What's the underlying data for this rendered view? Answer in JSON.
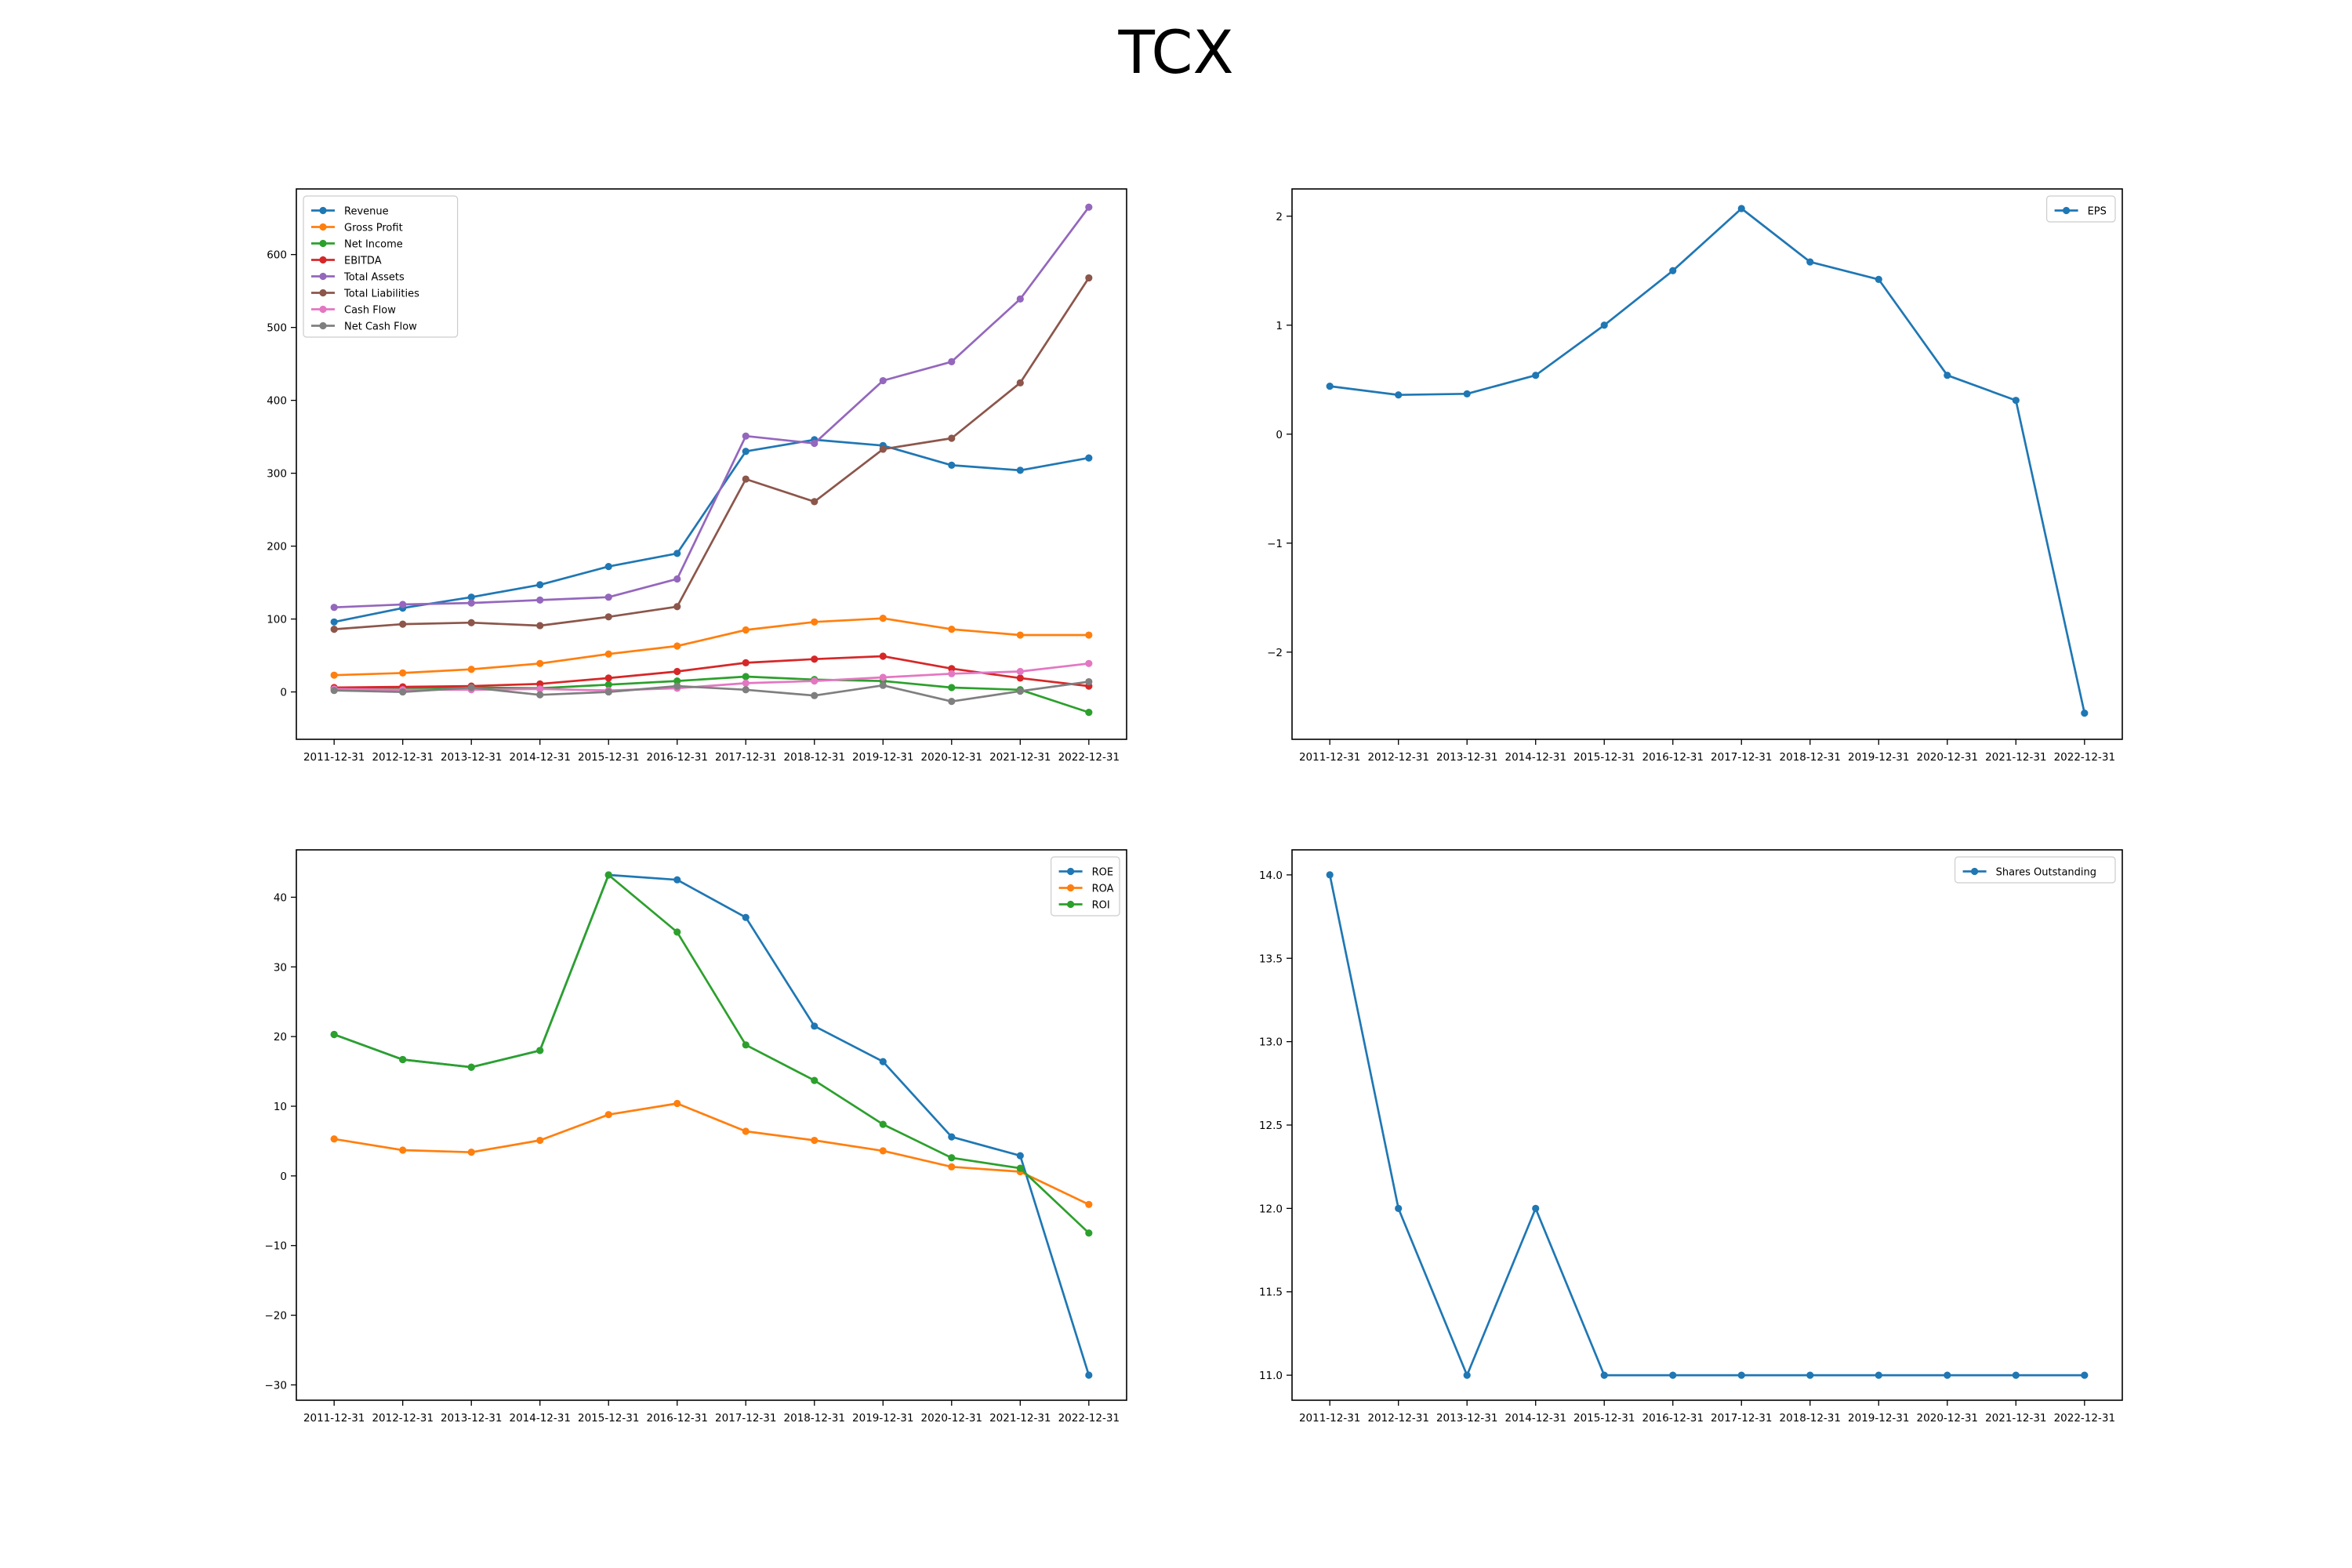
{
  "figure": {
    "title": "TCX"
  },
  "chart_data": [
    {
      "type": "line",
      "title": "",
      "xlabel": "",
      "ylabel": "",
      "x": [
        "2011-12-31",
        "2012-12-31",
        "2013-12-31",
        "2014-12-31",
        "2015-12-31",
        "2016-12-31",
        "2017-12-31",
        "2018-12-31",
        "2019-12-31",
        "2020-12-31",
        "2021-12-31",
        "2022-12-31"
      ],
      "ylim": [
        -65,
        690
      ],
      "yticks": [
        0,
        100,
        200,
        300,
        400,
        500,
        600
      ],
      "legend": "upper-left",
      "grid": false,
      "series": [
        {
          "name": "Revenue",
          "color": "#1f77b4",
          "values": [
            96,
            115,
            130,
            147,
            172,
            190,
            330,
            346,
            338,
            311,
            304,
            321
          ]
        },
        {
          "name": "Gross Profit",
          "color": "#ff7f0e",
          "values": [
            23,
            26,
            31,
            39,
            52,
            63,
            85,
            96,
            101,
            86,
            78,
            78
          ]
        },
        {
          "name": "Net Income",
          "color": "#2ca02c",
          "values": [
            5,
            5,
            6,
            5,
            10,
            15,
            21,
            17,
            15,
            6,
            3,
            -28
          ]
        },
        {
          "name": "EBITDA",
          "color": "#d62728",
          "values": [
            6,
            7,
            8,
            11,
            19,
            28,
            40,
            45,
            49,
            32,
            19,
            8
          ]
        },
        {
          "name": "Total Assets",
          "color": "#9467bd",
          "values": [
            116,
            120,
            122,
            126,
            130,
            155,
            351,
            341,
            427,
            453,
            539,
            665
          ]
        },
        {
          "name": "Total Liabilities",
          "color": "#8c564b",
          "values": [
            86,
            93,
            95,
            91,
            103,
            117,
            292,
            261,
            333,
            348,
            424,
            568
          ]
        },
        {
          "name": "Cash Flow",
          "color": "#e377c2",
          "values": [
            4,
            3,
            3,
            4,
            2,
            5,
            12,
            15,
            20,
            25,
            28,
            39
          ]
        },
        {
          "name": "Net Cash Flow",
          "color": "#7f7f7f",
          "values": [
            2,
            0,
            6,
            -4,
            0,
            8,
            3,
            -5,
            9,
            -13,
            1,
            14
          ]
        }
      ]
    },
    {
      "type": "line",
      "title": "",
      "xlabel": "",
      "ylabel": "",
      "x": [
        "2011-12-31",
        "2012-12-31",
        "2013-12-31",
        "2014-12-31",
        "2015-12-31",
        "2016-12-31",
        "2017-12-31",
        "2018-12-31",
        "2019-12-31",
        "2020-12-31",
        "2021-12-31",
        "2022-12-31"
      ],
      "ylim": [
        -2.8,
        2.25
      ],
      "yticks": [
        -2,
        -1,
        0,
        1,
        2
      ],
      "legend": "upper-right",
      "grid": false,
      "series": [
        {
          "name": "EPS",
          "color": "#1f77b4",
          "values": [
            0.44,
            0.36,
            0.37,
            0.54,
            1.0,
            1.5,
            2.07,
            1.58,
            1.42,
            0.54,
            0.31,
            -2.56
          ]
        }
      ]
    },
    {
      "type": "line",
      "title": "",
      "xlabel": "",
      "ylabel": "",
      "x": [
        "2011-12-31",
        "2012-12-31",
        "2013-12-31",
        "2014-12-31",
        "2015-12-31",
        "2016-12-31",
        "2017-12-31",
        "2018-12-31",
        "2019-12-31",
        "2020-12-31",
        "2021-12-31",
        "2022-12-31"
      ],
      "ylim": [
        -32.2,
        46.8
      ],
      "yticks": [
        -30,
        -20,
        -10,
        0,
        10,
        20,
        30,
        40
      ],
      "legend": "upper-right",
      "grid": false,
      "series": [
        {
          "name": "ROE",
          "color": "#1f77b4",
          "values": [
            20.3,
            16.7,
            15.6,
            18.0,
            43.2,
            42.5,
            37.1,
            21.5,
            16.4,
            5.6,
            2.9,
            -28.6
          ]
        },
        {
          "name": "ROA",
          "color": "#ff7f0e",
          "values": [
            5.3,
            3.7,
            3.4,
            5.1,
            8.8,
            10.4,
            6.4,
            5.1,
            3.6,
            1.3,
            0.6,
            -4.1
          ]
        },
        {
          "name": "ROI",
          "color": "#2ca02c",
          "values": [
            20.3,
            16.7,
            15.6,
            18.0,
            43.2,
            35.0,
            18.8,
            13.7,
            7.4,
            2.6,
            1.1,
            -8.2
          ]
        }
      ]
    },
    {
      "type": "line",
      "title": "",
      "xlabel": "",
      "ylabel": "",
      "x": [
        "2011-12-31",
        "2012-12-31",
        "2013-12-31",
        "2014-12-31",
        "2015-12-31",
        "2016-12-31",
        "2017-12-31",
        "2018-12-31",
        "2019-12-31",
        "2020-12-31",
        "2021-12-31",
        "2022-12-31"
      ],
      "ylim": [
        10.85,
        14.15
      ],
      "yticks": [
        11.0,
        11.5,
        12.0,
        12.5,
        13.0,
        13.5,
        14.0
      ],
      "ytick_labels": [
        "11.0",
        "11.5",
        "12.0",
        "12.5",
        "13.0",
        "13.5",
        "14.0"
      ],
      "legend": "upper-right",
      "grid": false,
      "series": [
        {
          "name": "Shares Outstanding",
          "color": "#1f77b4",
          "values": [
            14,
            12,
            11,
            12,
            11,
            11,
            11,
            11,
            11,
            11,
            11,
            11
          ]
        }
      ]
    }
  ]
}
